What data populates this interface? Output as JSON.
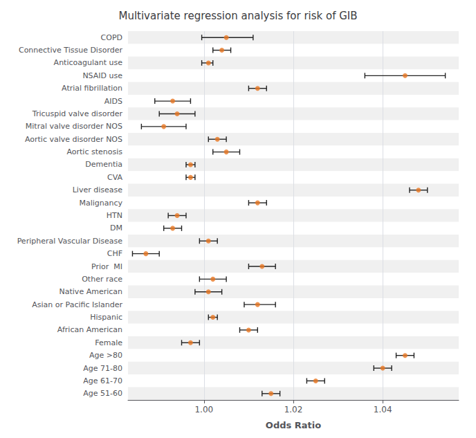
{
  "chart_data": {
    "type": "forest",
    "title": "Multivariate regression analysis for risk of GIB",
    "xlabel": "Odds Ratio",
    "categories": [
      "COPD",
      "Connective Tissue Disorder",
      "Anticoagulant use",
      "NSAID use",
      "Atrial fibrillation",
      "AIDS",
      "Tricuspid valve disorder",
      "Mitral valve disorder NOS",
      "Aortic valve disorder NOS",
      "Aortic stenosis",
      "Dementia",
      "CVA",
      "Liver disease",
      "Malignancy",
      "HTN",
      "DM",
      "Peripheral Vascular Disease",
      "CHF",
      "Prior  MI",
      "Other race",
      "Native American",
      "Asian or Pacific Islander",
      "Hispanic",
      "African American",
      "Female",
      "Age >80",
      "Age 71-80",
      "Age 61-70",
      "Age 51-60"
    ],
    "values": [
      1.005,
      1.004,
      1.001,
      1.045,
      1.012,
      0.993,
      0.994,
      0.991,
      1.003,
      1.005,
      0.997,
      0.997,
      1.048,
      1.012,
      0.994,
      0.993,
      1.001,
      0.987,
      1.013,
      1.002,
      1.001,
      1.012,
      1.002,
      1.01,
      0.997,
      1.045,
      1.04,
      1.025,
      1.015
    ],
    "ci_lower": [
      0.9995,
      1.002,
      0.9995,
      1.036,
      1.01,
      0.989,
      0.99,
      0.986,
      1.001,
      1.002,
      0.996,
      0.996,
      1.046,
      1.01,
      0.992,
      0.991,
      0.999,
      0.984,
      1.01,
      0.999,
      0.998,
      1.009,
      1.001,
      1.008,
      0.995,
      1.043,
      1.038,
      1.023,
      1.013
    ],
    "ci_upper": [
      1.011,
      1.006,
      1.002,
      1.054,
      1.014,
      0.997,
      0.998,
      0.996,
      1.005,
      1.008,
      0.998,
      0.998,
      1.05,
      1.014,
      0.996,
      0.995,
      1.003,
      0.99,
      1.016,
      1.005,
      1.004,
      1.016,
      1.003,
      1.012,
      0.999,
      1.047,
      1.042,
      1.027,
      1.017
    ],
    "color": "#E87722",
    "xlim": [
      0.983,
      1.057
    ],
    "xticks": [
      {
        "value": 1.0,
        "label": "1.00"
      },
      {
        "value": 1.02,
        "label": "1.02"
      },
      {
        "value": 1.04,
        "label": "1.04"
      }
    ],
    "grid": true
  }
}
